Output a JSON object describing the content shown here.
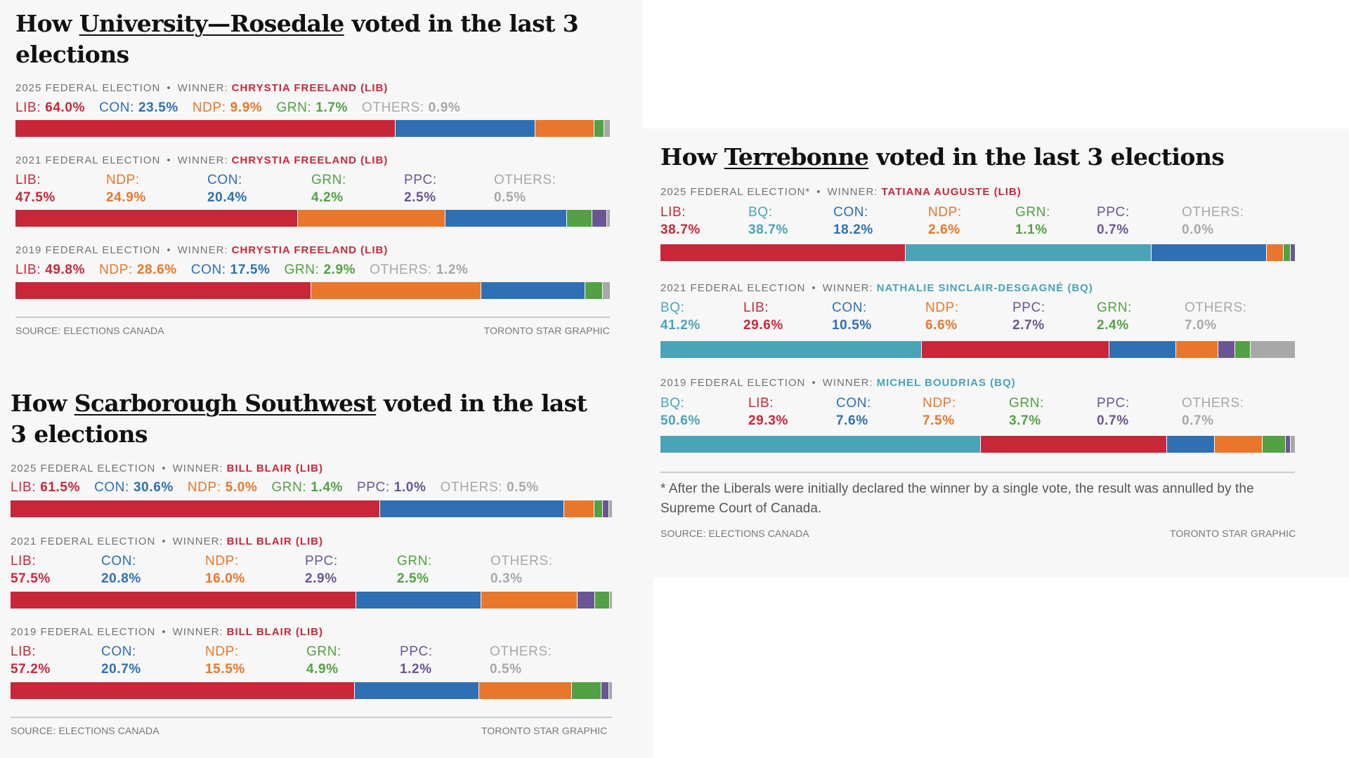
{
  "colors": {
    "LIB": "#c8273a",
    "CON": "#2f6fb3",
    "NDP": "#e8762b",
    "GRN": "#54a044",
    "PPC": "#6a5595",
    "BQ": "#4aa3b7",
    "OTHERS": "#a8a8a8",
    "header_gray": "#737373",
    "panel_bg": "#f7f7f7"
  },
  "common": {
    "winner_prefix": "WINNER:",
    "bullet": "•",
    "source": "SOURCE: ELECTIONS CANADA",
    "credit": "TORONTO STAR GRAPHIC"
  },
  "chart_data": [
    {
      "type": "bar",
      "subtype": "stacked-horizontal-100",
      "title_prefix": "How",
      "riding": "University—Rosedale",
      "title_suffix": "voted in the last 3 elections",
      "elections": [
        {
          "label": "2025 FEDERAL ELECTION",
          "winner": "CHRYSTIA FREELAND (LIB)",
          "winner_party": "LIB",
          "layout": "inline",
          "results": [
            {
              "party": "LIB",
              "label": "LIB:",
              "value": 64.0,
              "text": "64.0%"
            },
            {
              "party": "CON",
              "label": "CON:",
              "value": 23.5,
              "text": "23.5%"
            },
            {
              "party": "NDP",
              "label": "NDP:",
              "value": 9.9,
              "text": "9.9%"
            },
            {
              "party": "GRN",
              "label": "GRN:",
              "value": 1.7,
              "text": "1.7%"
            },
            {
              "party": "OTHERS",
              "label": "OTHERS:",
              "value": 0.9,
              "text": "0.9%"
            }
          ]
        },
        {
          "label": "2021 FEDERAL ELECTION",
          "winner": "CHRYSTIA FREELAND (LIB)",
          "winner_party": "LIB",
          "layout": "columns",
          "results": [
            {
              "party": "LIB",
              "label": "LIB:",
              "value": 47.5,
              "text": "47.5%"
            },
            {
              "party": "NDP",
              "label": "NDP:",
              "value": 24.9,
              "text": "24.9%"
            },
            {
              "party": "CON",
              "label": "CON:",
              "value": 20.4,
              "text": "20.4%"
            },
            {
              "party": "GRN",
              "label": "GRN:",
              "value": 4.2,
              "text": "4.2%"
            },
            {
              "party": "PPC",
              "label": "PPC:",
              "value": 2.5,
              "text": "2.5%"
            },
            {
              "party": "OTHERS",
              "label": "OTHERS:",
              "value": 0.5,
              "text": "0.5%"
            }
          ]
        },
        {
          "label": "2019 FEDERAL ELECTION",
          "winner": "CHRYSTIA FREELAND (LIB)",
          "winner_party": "LIB",
          "layout": "inline",
          "results": [
            {
              "party": "LIB",
              "label": "LIB:",
              "value": 49.8,
              "text": "49.8%"
            },
            {
              "party": "NDP",
              "label": "NDP:",
              "value": 28.6,
              "text": "28.6%"
            },
            {
              "party": "CON",
              "label": "CON:",
              "value": 17.5,
              "text": "17.5%"
            },
            {
              "party": "GRN",
              "label": "GRN:",
              "value": 2.9,
              "text": "2.9%"
            },
            {
              "party": "OTHERS",
              "label": "OTHERS:",
              "value": 1.2,
              "text": "1.2%"
            }
          ]
        }
      ],
      "footnote": null
    },
    {
      "type": "bar",
      "subtype": "stacked-horizontal-100",
      "title_prefix": "How",
      "riding": "Scarborough Southwest",
      "title_suffix": "voted in the last 3 elections",
      "elections": [
        {
          "label": "2025 FEDERAL ELECTION",
          "winner": "BILL BLAIR (LIB)",
          "winner_party": "LIB",
          "layout": "inline",
          "results": [
            {
              "party": "LIB",
              "label": "LIB:",
              "value": 61.5,
              "text": "61.5%"
            },
            {
              "party": "CON",
              "label": "CON:",
              "value": 30.6,
              "text": "30.6%"
            },
            {
              "party": "NDP",
              "label": "NDP:",
              "value": 5.0,
              "text": "5.0%"
            },
            {
              "party": "GRN",
              "label": "GRN:",
              "value": 1.4,
              "text": "1.4%"
            },
            {
              "party": "PPC",
              "label": "PPC:",
              "value": 1.0,
              "text": "1.0%"
            },
            {
              "party": "OTHERS",
              "label": "OTHERS:",
              "value": 0.5,
              "text": "0.5%"
            }
          ]
        },
        {
          "label": "2021 FEDERAL ELECTION",
          "winner": "BILL BLAIR (LIB)",
          "winner_party": "LIB",
          "layout": "columns",
          "results": [
            {
              "party": "LIB",
              "label": "LIB:",
              "value": 57.5,
              "text": "57.5%"
            },
            {
              "party": "CON",
              "label": "CON:",
              "value": 20.8,
              "text": "20.8%"
            },
            {
              "party": "NDP",
              "label": "NDP:",
              "value": 16.0,
              "text": "16.0%"
            },
            {
              "party": "PPC",
              "label": "PPC:",
              "value": 2.9,
              "text": "2.9%"
            },
            {
              "party": "GRN",
              "label": "GRN:",
              "value": 2.5,
              "text": "2.5%"
            },
            {
              "party": "OTHERS",
              "label": "OTHERS:",
              "value": 0.3,
              "text": "0.3%"
            }
          ]
        },
        {
          "label": "2019 FEDERAL ELECTION",
          "winner": "BILL BLAIR (LIB)",
          "winner_party": "LIB",
          "layout": "columns",
          "results": [
            {
              "party": "LIB",
              "label": "LIB:",
              "value": 57.2,
              "text": "57.2%"
            },
            {
              "party": "CON",
              "label": "CON:",
              "value": 20.7,
              "text": "20.7%"
            },
            {
              "party": "NDP",
              "label": "NDP:",
              "value": 15.5,
              "text": "15.5%"
            },
            {
              "party": "GRN",
              "label": "GRN:",
              "value": 4.9,
              "text": "4.9%"
            },
            {
              "party": "PPC",
              "label": "PPC:",
              "value": 1.2,
              "text": "1.2%"
            },
            {
              "party": "OTHERS",
              "label": "OTHERS:",
              "value": 0.5,
              "text": "0.5%"
            }
          ]
        }
      ],
      "footnote": null
    },
    {
      "type": "bar",
      "subtype": "stacked-horizontal-100",
      "title_prefix": "How",
      "riding": "Terrebonne",
      "title_suffix": "voted in the last 3 elections",
      "elections": [
        {
          "label": "2025 FEDERAL ELECTION*",
          "winner": "TATIANA AUGUSTE (LIB)",
          "winner_party": "LIB",
          "layout": "columns",
          "results": [
            {
              "party": "LIB",
              "label": "LIB:",
              "value": 38.7,
              "text": "38.7%"
            },
            {
              "party": "BQ",
              "label": "BQ:",
              "value": 38.7,
              "text": "38.7%"
            },
            {
              "party": "CON",
              "label": "CON:",
              "value": 18.2,
              "text": "18.2%"
            },
            {
              "party": "NDP",
              "label": "NDP:",
              "value": 2.6,
              "text": "2.6%"
            },
            {
              "party": "GRN",
              "label": "GRN:",
              "value": 1.1,
              "text": "1.1%"
            },
            {
              "party": "PPC",
              "label": "PPC:",
              "value": 0.7,
              "text": "0.7%"
            },
            {
              "party": "OTHERS",
              "label": "OTHERS:",
              "value": 0.0,
              "text": "0.0%"
            }
          ]
        },
        {
          "label": "2021 FEDERAL ELECTION",
          "winner": "NATHALIE SINCLAIR-DESGAGNÉ (BQ)",
          "winner_party": "BQ",
          "layout": "columns",
          "results": [
            {
              "party": "BQ",
              "label": "BQ:",
              "value": 41.2,
              "text": "41.2%"
            },
            {
              "party": "LIB",
              "label": "LIB:",
              "value": 29.6,
              "text": "29.6%"
            },
            {
              "party": "CON",
              "label": "CON:",
              "value": 10.5,
              "text": "10.5%"
            },
            {
              "party": "NDP",
              "label": "NDP:",
              "value": 6.6,
              "text": "6.6%"
            },
            {
              "party": "PPC",
              "label": "PPC:",
              "value": 2.7,
              "text": "2.7%"
            },
            {
              "party": "GRN",
              "label": "GRN:",
              "value": 2.4,
              "text": "2.4%"
            },
            {
              "party": "OTHERS",
              "label": "OTHERS:",
              "value": 7.0,
              "text": "7.0%"
            }
          ]
        },
        {
          "label": "2019 FEDERAL ELECTION",
          "winner": "MICHEL BOUDRIAS (BQ)",
          "winner_party": "BQ",
          "layout": "columns",
          "results": [
            {
              "party": "BQ",
              "label": "BQ:",
              "value": 50.6,
              "text": "50.6%"
            },
            {
              "party": "LIB",
              "label": "LIB:",
              "value": 29.3,
              "text": "29.3%"
            },
            {
              "party": "CON",
              "label": "CON:",
              "value": 7.6,
              "text": "7.6%"
            },
            {
              "party": "NDP",
              "label": "NDP:",
              "value": 7.5,
              "text": "7.5%"
            },
            {
              "party": "GRN",
              "label": "GRN:",
              "value": 3.7,
              "text": "3.7%"
            },
            {
              "party": "PPC",
              "label": "PPC:",
              "value": 0.7,
              "text": "0.7%"
            },
            {
              "party": "OTHERS",
              "label": "OTHERS:",
              "value": 0.7,
              "text": "0.7%"
            }
          ]
        }
      ],
      "footnote": "* After the Liberals were initially declared the winner by a single vote, the result was annulled by the Supreme Court of Canada."
    }
  ]
}
